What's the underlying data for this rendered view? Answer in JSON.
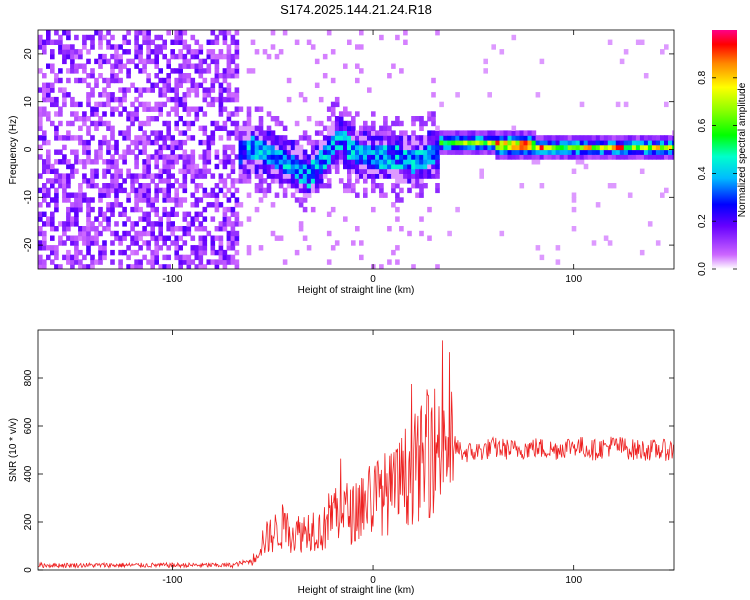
{
  "title": "S174.2025.144.21.24.R18",
  "colorbar": {
    "label": "Normalized spectral amplitude",
    "ticks": [
      0.0,
      0.2,
      0.4,
      0.6,
      0.8
    ],
    "tick_labels": [
      "0.0",
      "0.2",
      "0.4",
      "0.6",
      "0.8"
    ]
  },
  "chart_data": [
    {
      "type": "heatmap",
      "xlabel": "Height of straight line (km)",
      "ylabel": "Frequency (Hz)",
      "xlim": [
        -167,
        150
      ],
      "ylim": [
        -25,
        25
      ],
      "xticks": [
        -100,
        0,
        100
      ],
      "xtick_labels": [
        "-100",
        "0",
        "100"
      ],
      "yticks": [
        -20,
        -10,
        0,
        10,
        20
      ],
      "ytick_labels": [
        "-20",
        "-10",
        "0",
        "10",
        "20"
      ],
      "colormap": "rainbow (white-violet-blue-cyan-green-yellow-red-magenta)",
      "value_range": [
        0,
        1
      ],
      "regions": [
        {
          "x_range": [
            -167,
            -68
          ],
          "description_level": 0.1
        },
        {
          "x_range": [
            -68,
            33
          ],
          "description_level": 0.25
        },
        {
          "x_range": [
            33,
            150
          ],
          "description_level": 0.6
        }
      ],
      "ridge_line": {
        "x": [
          -68,
          -60,
          -50,
          -40,
          -33,
          -25,
          -18,
          -10,
          0,
          10,
          20,
          30,
          33,
          40,
          60,
          80,
          100,
          120,
          150
        ],
        "y": [
          -1,
          0,
          -2,
          -4,
          -6,
          -2,
          2,
          -1,
          -2,
          -2,
          -3,
          -1,
          1,
          1,
          1,
          0,
          0,
          0,
          0
        ]
      }
    },
    {
      "type": "line",
      "xlabel": "Height of straight line (km)",
      "ylabel": "SNR (10 * v/v)",
      "xlim": [
        -167,
        150
      ],
      "ylim": [
        0,
        1000
      ],
      "xticks": [
        -100,
        0,
        100
      ],
      "xtick_labels": [
        "-100",
        "0",
        "100"
      ],
      "yticks": [
        0,
        200,
        400,
        600,
        800
      ],
      "ytick_labels": [
        "0",
        "200",
        "400",
        "600",
        "800"
      ],
      "color": "#ee2222",
      "series": [
        {
          "x": [
            -167,
            -150,
            -130,
            -110,
            -90,
            -70,
            -60,
            -55,
            -50,
            -45,
            -40,
            -35,
            -30,
            -25,
            -20,
            -15,
            -10,
            -5,
            0,
            5,
            10,
            15,
            20,
            25,
            30,
            35,
            40,
            45,
            50,
            60,
            70,
            80,
            90,
            100,
            110,
            120,
            130,
            140,
            150
          ],
          "values": [
            20,
            20,
            20,
            20,
            20,
            20,
            40,
            120,
            150,
            180,
            150,
            160,
            180,
            160,
            250,
            250,
            230,
            280,
            300,
            320,
            320,
            380,
            420,
            450,
            500,
            560,
            520,
            490,
            490,
            510,
            500,
            510,
            500,
            520,
            500,
            520,
            500,
            500,
            500
          ]
        }
      ]
    }
  ]
}
